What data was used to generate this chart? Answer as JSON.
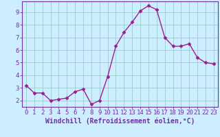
{
  "x": [
    0,
    1,
    2,
    3,
    4,
    5,
    6,
    7,
    8,
    9,
    10,
    11,
    12,
    13,
    14,
    15,
    16,
    17,
    18,
    19,
    20,
    21,
    22,
    23
  ],
  "y": [
    3.2,
    2.6,
    2.6,
    2.0,
    2.1,
    2.2,
    2.7,
    2.9,
    1.7,
    2.0,
    3.9,
    6.3,
    7.4,
    8.2,
    9.1,
    9.5,
    9.2,
    7.0,
    6.3,
    6.3,
    6.5,
    5.4,
    5.0,
    4.9
  ],
  "line_color": "#9b1e8e",
  "marker": "D",
  "markersize": 2.5,
  "linewidth": 1.0,
  "bg_color": "#cceeff",
  "grid_color": "#99cccc",
  "xlabel": "Windchill (Refroidissement éolien,°C)",
  "ylabel_ticks": [
    2,
    3,
    4,
    5,
    6,
    7,
    8,
    9
  ],
  "xlim": [
    -0.5,
    23.5
  ],
  "ylim": [
    1.5,
    9.85
  ],
  "xticks": [
    0,
    1,
    2,
    3,
    4,
    5,
    6,
    7,
    8,
    9,
    10,
    11,
    12,
    13,
    14,
    15,
    16,
    17,
    18,
    19,
    20,
    21,
    22,
    23
  ],
  "axis_color": "#7030a0",
  "tick_color": "#7030a0",
  "xlabel_fontsize": 7.0,
  "tick_fontsize": 6.5,
  "xlabel_color": "#7030a0",
  "spine_color": "#7030a0"
}
